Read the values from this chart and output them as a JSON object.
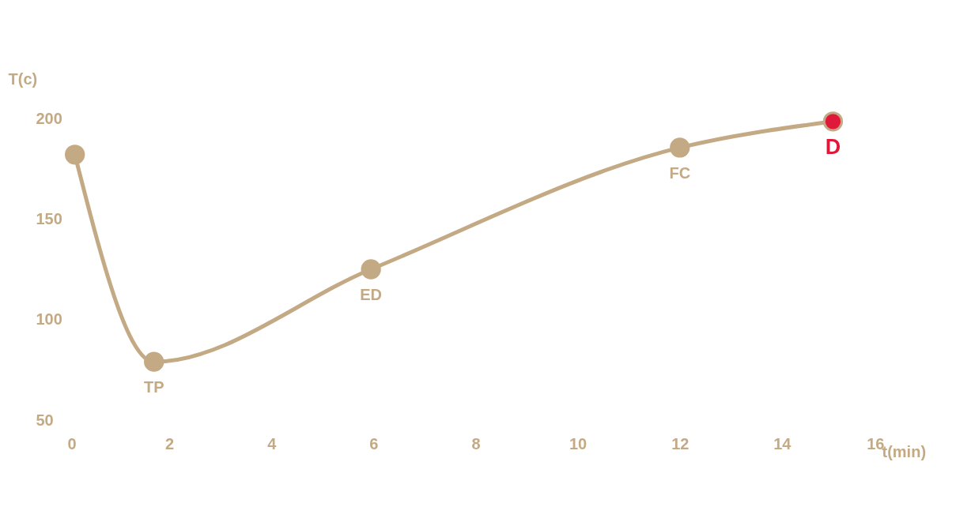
{
  "chart_data": {
    "type": "line",
    "xlabel": "t(min)",
    "ylabel": "T(c)",
    "x": [
      0.15,
      1.7,
      5.95,
      12,
      15
    ],
    "series": [
      {
        "color": "#c4aa84",
        "values": [
          182,
          79,
          125,
          185.5,
          198.5
        ],
        "colors": [
          "#c4aa84",
          "#c4aa84",
          "#c4aa84",
          "#c4aa84",
          "#e0193a"
        ]
      }
    ],
    "xlim": [
      0,
      16
    ],
    "ylim": [
      50,
      200
    ],
    "xticks": [
      0,
      2,
      4,
      6,
      8,
      10,
      12,
      14,
      16
    ],
    "yticks": [
      50,
      100,
      150,
      200
    ],
    "marker": "circle",
    "grid": false,
    "annotations": [
      {
        "text": "TP",
        "x": 1.7,
        "y": 79
      },
      {
        "text": "ED",
        "x": 5.95,
        "y": 125
      },
      {
        "text": "FC",
        "x": 12,
        "y": 185.5
      },
      {
        "text": "D",
        "x": 15,
        "y": 198.5
      }
    ]
  }
}
